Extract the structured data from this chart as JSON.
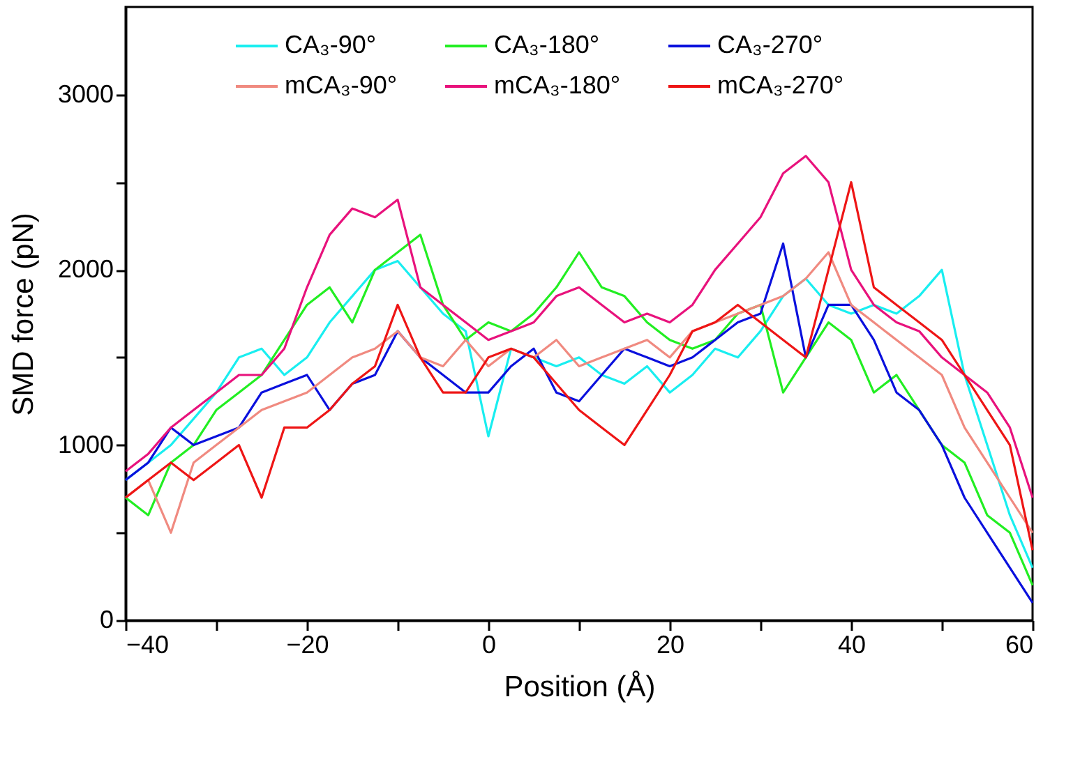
{
  "chart_data": {
    "type": "line",
    "xlabel": "Position (Å)",
    "ylabel": "SMD force (pN)",
    "x": [
      -40,
      -37.5,
      -35,
      -32.5,
      -30,
      -27.5,
      -25,
      -22.5,
      -20,
      -17.5,
      -15,
      -12.5,
      -10,
      -7.5,
      -5,
      -2.5,
      0,
      2.5,
      5,
      7.5,
      10,
      12.5,
      15,
      17.5,
      20,
      22.5,
      25,
      27.5,
      30,
      32.5,
      35,
      37.5,
      40,
      42.5,
      45,
      47.5,
      50,
      52.5,
      55,
      57.5,
      60
    ],
    "series": [
      {
        "name": "CA₃-90°",
        "color": "#19eef0",
        "values": [
          800,
          900,
          1000,
          1150,
          1300,
          1500,
          1550,
          1400,
          1500,
          1700,
          1850,
          2000,
          2050,
          1900,
          1750,
          1650,
          1050,
          1550,
          1500,
          1450,
          1500,
          1400,
          1350,
          1450,
          1300,
          1400,
          1550,
          1500,
          1650,
          1850,
          1950,
          1800,
          1750,
          1800,
          1750,
          1850,
          2000,
          1400,
          1000,
          600,
          300
        ]
      },
      {
        "name": "CA₃-180°",
        "color": "#22ee22",
        "values": [
          700,
          600,
          900,
          1000,
          1200,
          1300,
          1400,
          1600,
          1800,
          1900,
          1700,
          2000,
          2100,
          2200,
          1800,
          1600,
          1700,
          1650,
          1750,
          1900,
          2100,
          1900,
          1850,
          1700,
          1600,
          1550,
          1600,
          1750,
          1800,
          1300,
          1500,
          1700,
          1600,
          1300,
          1400,
          1200,
          1000,
          900,
          600,
          500,
          200
        ]
      },
      {
        "name": "CA₃-270°",
        "color": "#0a10dd",
        "values": [
          800,
          900,
          1100,
          1000,
          1050,
          1100,
          1300,
          1350,
          1400,
          1200,
          1350,
          1400,
          1650,
          1500,
          1400,
          1300,
          1300,
          1450,
          1550,
          1300,
          1250,
          1400,
          1550,
          1500,
          1450,
          1500,
          1600,
          1700,
          1750,
          2150,
          1500,
          1800,
          1800,
          1600,
          1300,
          1200,
          1000,
          700,
          500,
          300,
          100
        ]
      },
      {
        "name": "mCA₃-90°",
        "color": "#f08a80",
        "values": [
          700,
          800,
          500,
          900,
          1000,
          1100,
          1200,
          1250,
          1300,
          1400,
          1500,
          1550,
          1650,
          1500,
          1450,
          1600,
          1450,
          1550,
          1500,
          1600,
          1450,
          1500,
          1550,
          1600,
          1500,
          1650,
          1700,
          1750,
          1800,
          1850,
          1950,
          2100,
          1800,
          1700,
          1600,
          1500,
          1400,
          1100,
          900,
          700,
          500
        ]
      },
      {
        "name": "mCA₃-180°",
        "color": "#e8127c",
        "values": [
          850,
          950,
          1100,
          1200,
          1300,
          1400,
          1400,
          1550,
          1900,
          2200,
          2350,
          2300,
          2400,
          1900,
          1800,
          1700,
          1600,
          1650,
          1700,
          1850,
          1900,
          1800,
          1700,
          1750,
          1700,
          1800,
          2000,
          2150,
          2300,
          2550,
          2650,
          2500,
          2000,
          1800,
          1700,
          1650,
          1500,
          1400,
          1300,
          1100,
          700
        ]
      },
      {
        "name": "mCA₃-270°",
        "color": "#ee1515",
        "values": [
          700,
          800,
          900,
          800,
          900,
          1000,
          700,
          1100,
          1100,
          1200,
          1350,
          1450,
          1800,
          1500,
          1300,
          1300,
          1500,
          1550,
          1500,
          1350,
          1200,
          1100,
          1000,
          1200,
          1400,
          1650,
          1700,
          1800,
          1700,
          1600,
          1500,
          2000,
          2500,
          1900,
          1800,
          1700,
          1600,
          1400,
          1200,
          1000,
          400
        ]
      }
    ],
    "xlim": [
      -40,
      60
    ],
    "xticks": [
      -40,
      {
        "value": -30,
        "label": null
      },
      -20,
      {
        "value": -10,
        "label": null
      },
      0,
      {
        "value": 10,
        "label": null
      },
      20,
      {
        "value": 30,
        "label": null
      },
      40,
      {
        "value": 50,
        "label": null
      },
      60
    ],
    "ylim": [
      0,
      3500
    ],
    "yticks": [
      0,
      {
        "value": 500,
        "label": null
      },
      1000,
      {
        "value": 1500,
        "label": null
      },
      2000,
      {
        "value": 2500,
        "label": null
      },
      3000
    ],
    "grid": false,
    "legend": "top",
    "line_style": "solid",
    "marker": "none"
  }
}
